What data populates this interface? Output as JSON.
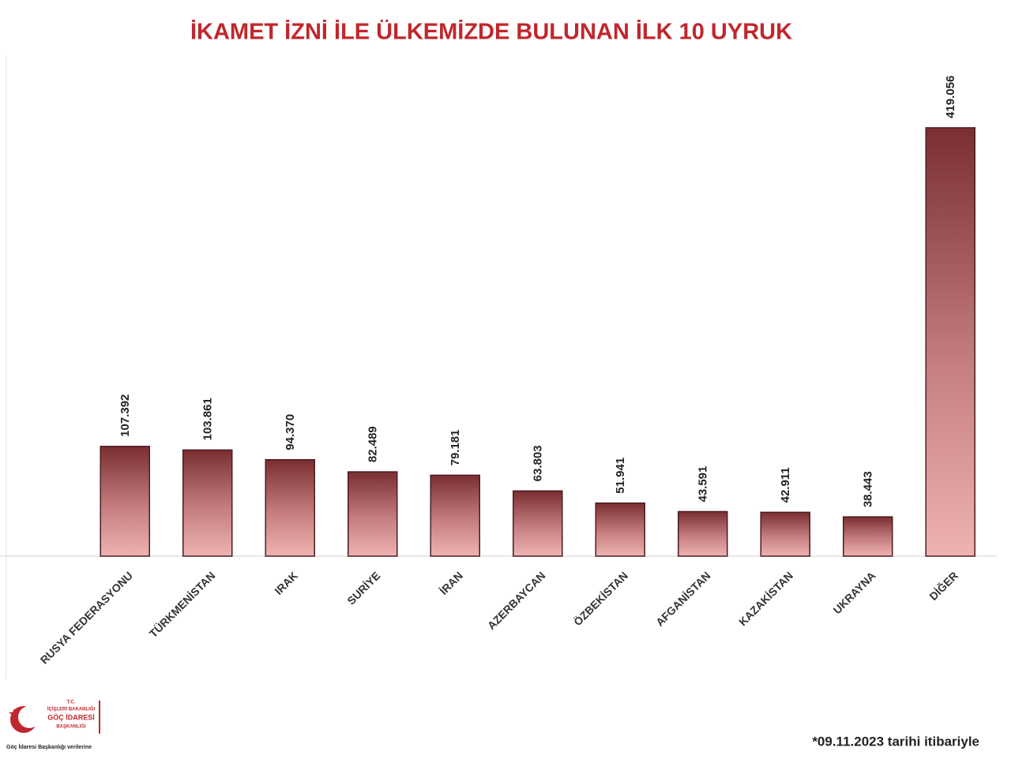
{
  "chart_data": {
    "type": "bar",
    "title": "İKAMET İZNİ İLE ÜLKEMİZDE BULUNAN İLK 10 UYRUK",
    "categories": [
      "RUSYA FEDERASYONU",
      "TÜRKMENİSTAN",
      "IRAK",
      "SURİYE",
      "İRAN",
      "AZERBAYCAN",
      "ÖZBEKİSTAN",
      "AFGANİSTAN",
      "KAZAKİSTAN",
      "UKRAYNA",
      "DİĞER"
    ],
    "values": [
      107392,
      103861,
      94370,
      82489,
      79181,
      63803,
      51941,
      43591,
      42911,
      38443,
      419056
    ],
    "value_labels": [
      "107.392",
      "103.861",
      "94.370",
      "82.489",
      "79.181",
      "63.803",
      "51.941",
      "43.591",
      "42.911",
      "38.443",
      "419.056"
    ],
    "color": "#7a2e32",
    "ylim": [
      0,
      490000
    ],
    "footnote": "*09.11.2023 tarihi itibariyle"
  },
  "logo": {
    "lines": [
      "T.C.",
      "İÇİŞLERİ BAKANLIĞI",
      "GÖÇ İDARESİ",
      "BAŞKANLIĞI"
    ],
    "caption": "Göç İdaresi Başkanlığı verilerine"
  }
}
